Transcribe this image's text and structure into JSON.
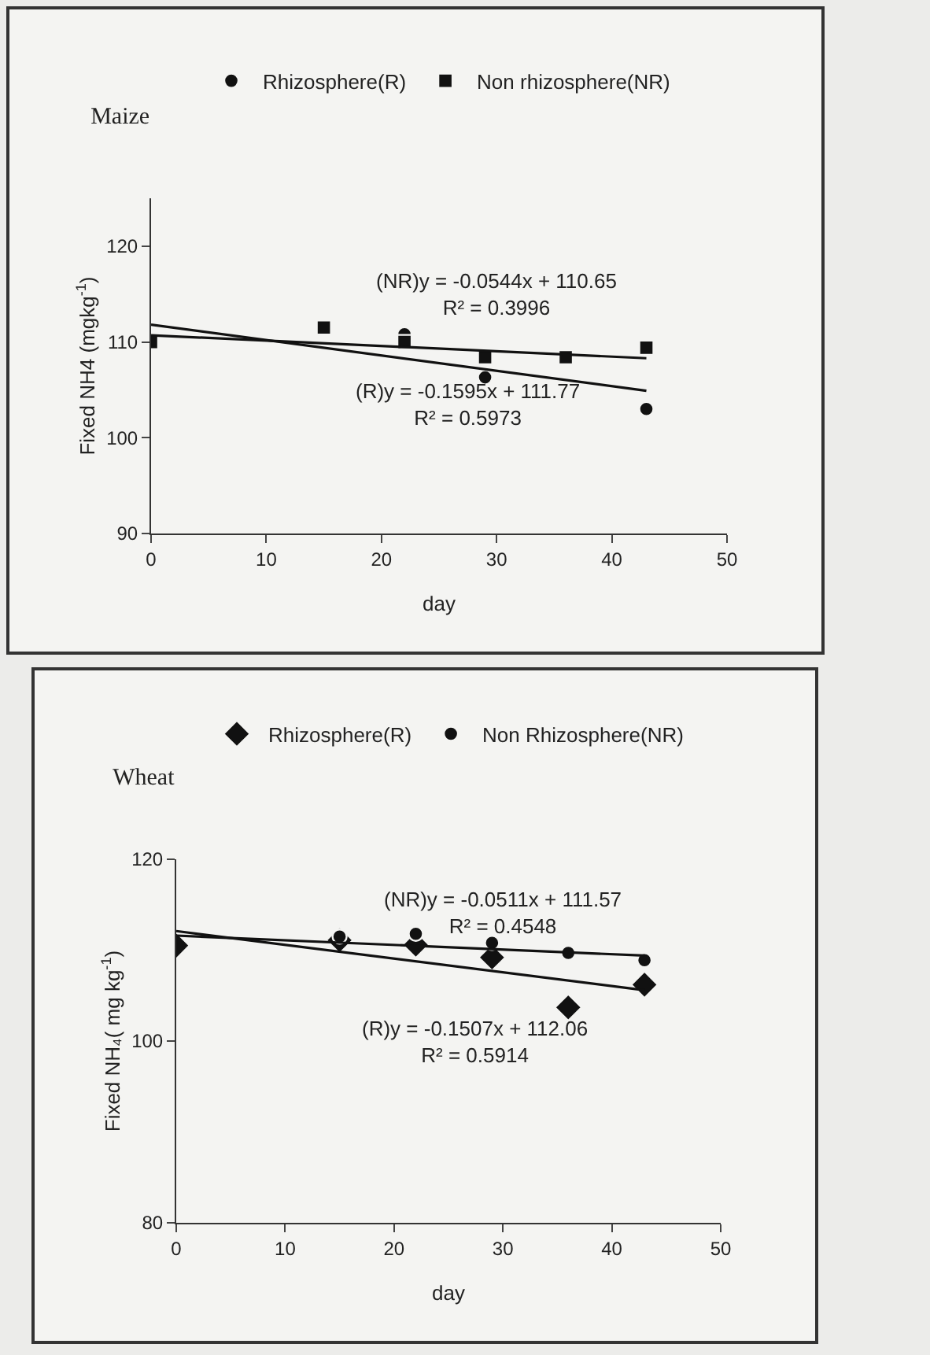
{
  "chart_data": [
    {
      "type": "scatter",
      "title": "Maize",
      "xlabel": "day",
      "ylabel": "Fixed NH4 (mgkg$^{-1}$)",
      "xlim": [
        0,
        50
      ],
      "xticks": [
        0,
        10,
        20,
        30,
        40,
        50
      ],
      "ylim": [
        90,
        125
      ],
      "yticks": [
        90,
        100,
        110,
        120
      ],
      "grid": false,
      "legend": "top",
      "series": [
        {
          "name": "Rhizosphere(R)",
          "type": "scatter",
          "marker": "circle",
          "color": "#111111",
          "x": [
            22,
            29,
            43
          ],
          "values": [
            110.8,
            106.3,
            103
          ]
        },
        {
          "name": "Non rhizosphere(NR)",
          "type": "scatter",
          "marker": "square",
          "color": "#111111",
          "x": [
            0,
            15,
            22,
            29,
            36,
            43
          ],
          "values": [
            110,
            111.5,
            110,
            108.4,
            108.4,
            109.4
          ]
        },
        {
          "type": "line",
          "marker": "none",
          "color": "#111111",
          "x": [
            0,
            43
          ],
          "values": [
            110.7,
            108.3
          ]
        },
        {
          "type": "line",
          "marker": "none",
          "color": "#111111",
          "x": [
            0,
            43
          ],
          "values": [
            111.8,
            104.9
          ]
        }
      ],
      "annotations": [
        "(NR)y = -0.0544x + 110.65\nR² = 0.3996",
        "(R)y = -0.1595x + 111.77\nR² = 0.5973"
      ]
    },
    {
      "type": "scatter",
      "title": "Wheat",
      "xlabel": "day",
      "ylabel": "Fixed NH₄( mg kg$^{-1}$)",
      "xlim": [
        0,
        50
      ],
      "xticks": [
        0,
        10,
        20,
        30,
        40,
        50
      ],
      "ylim": [
        80,
        120
      ],
      "yticks": [
        80,
        100,
        120
      ],
      "grid": false,
      "legend": "top",
      "series": [
        {
          "name": "Rhizosphere(R)",
          "type": "scatter",
          "marker": "diamond",
          "color": "#111111",
          "x": [
            0,
            15,
            22,
            29,
            36,
            43
          ],
          "values": [
            110.5,
            111.1,
            110.6,
            109.2,
            103.7,
            106.2
          ]
        },
        {
          "name": "Non Rhizosphere(NR)",
          "type": "scatter",
          "marker": "circle",
          "color": "#111111",
          "x": [
            15,
            22,
            29,
            36,
            43
          ],
          "values": [
            111.5,
            111.8,
            110.8,
            109.7,
            108.9
          ]
        },
        {
          "type": "line",
          "marker": "none",
          "color": "#111111",
          "x": [
            0,
            43
          ],
          "values": [
            111.6,
            109.4
          ]
        },
        {
          "type": "line",
          "marker": "none",
          "color": "#111111",
          "x": [
            0,
            43
          ],
          "values": [
            112.1,
            105.6
          ]
        }
      ],
      "annotations": [
        "(NR)y = -0.0511x + 111.57\nR² = 0.4548",
        "(R)y = -0.1507x + 112.06\nR² = 0.5914"
      ]
    }
  ]
}
